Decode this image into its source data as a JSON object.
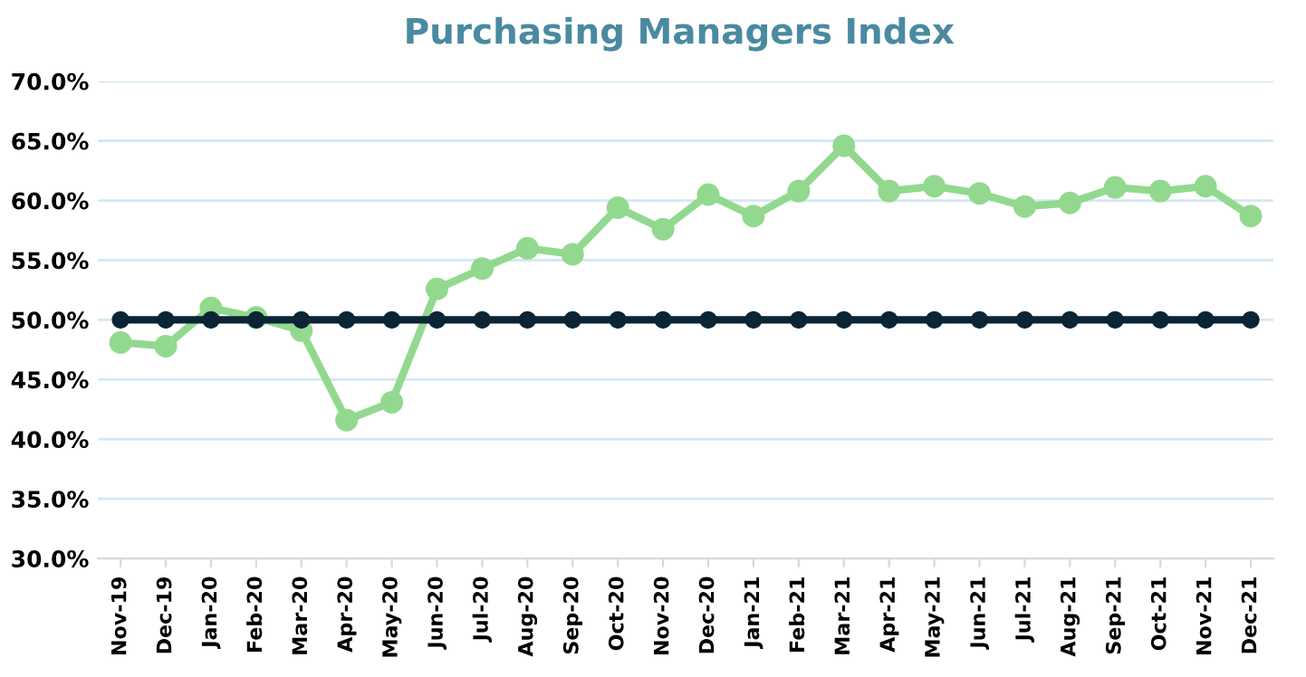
{
  "chart_data": {
    "type": "line",
    "title": "Purchasing Managers Index",
    "categories": [
      "Nov-19",
      "Dec-19",
      "Jan-20",
      "Feb-20",
      "Mar-20",
      "Apr-20",
      "May-20",
      "Jun-20",
      "Jul-20",
      "Aug-20",
      "Sep-20",
      "Oct-20",
      "Nov-20",
      "Dec-20",
      "Jan-21",
      "Feb-21",
      "Mar-21",
      "Apr-21",
      "May-21",
      "Jun-21",
      "Jul-21",
      "Aug-21",
      "Sep-21",
      "Oct-21",
      "Nov-21",
      "Dec-21"
    ],
    "series": [
      {
        "color": "#92d98f",
        "values": [
          48.1,
          47.8,
          51.0,
          50.2,
          49.1,
          41.6,
          43.1,
          52.6,
          54.3,
          56.0,
          55.5,
          59.4,
          57.6,
          60.5,
          58.7,
          60.8,
          64.6,
          60.8,
          61.2,
          60.6,
          59.5,
          59.8,
          61.1,
          60.8,
          61.2,
          58.7
        ]
      },
      {
        "color": "#0b2536",
        "values": [
          50,
          50,
          50,
          50,
          50,
          50,
          50,
          50,
          50,
          50,
          50,
          50,
          50,
          50,
          50,
          50,
          50,
          50,
          50,
          50,
          50,
          50,
          50,
          50,
          50,
          50
        ]
      }
    ],
    "ylim": [
      30,
      70
    ],
    "yticks": [
      {
        "value": 30,
        "label": "30.0%"
      },
      {
        "value": 35,
        "label": "35.0%"
      },
      {
        "value": 40,
        "label": "40.0%"
      },
      {
        "value": 45,
        "label": "45.0%"
      },
      {
        "value": 50,
        "label": "50.0%"
      },
      {
        "value": 55,
        "label": "55.0%"
      },
      {
        "value": 60,
        "label": "60.0%"
      },
      {
        "value": 65,
        "label": "65.0%"
      },
      {
        "value": 70,
        "label": "70.0%"
      }
    ],
    "grid": "y",
    "marker": "circle",
    "line_style": "solid"
  }
}
